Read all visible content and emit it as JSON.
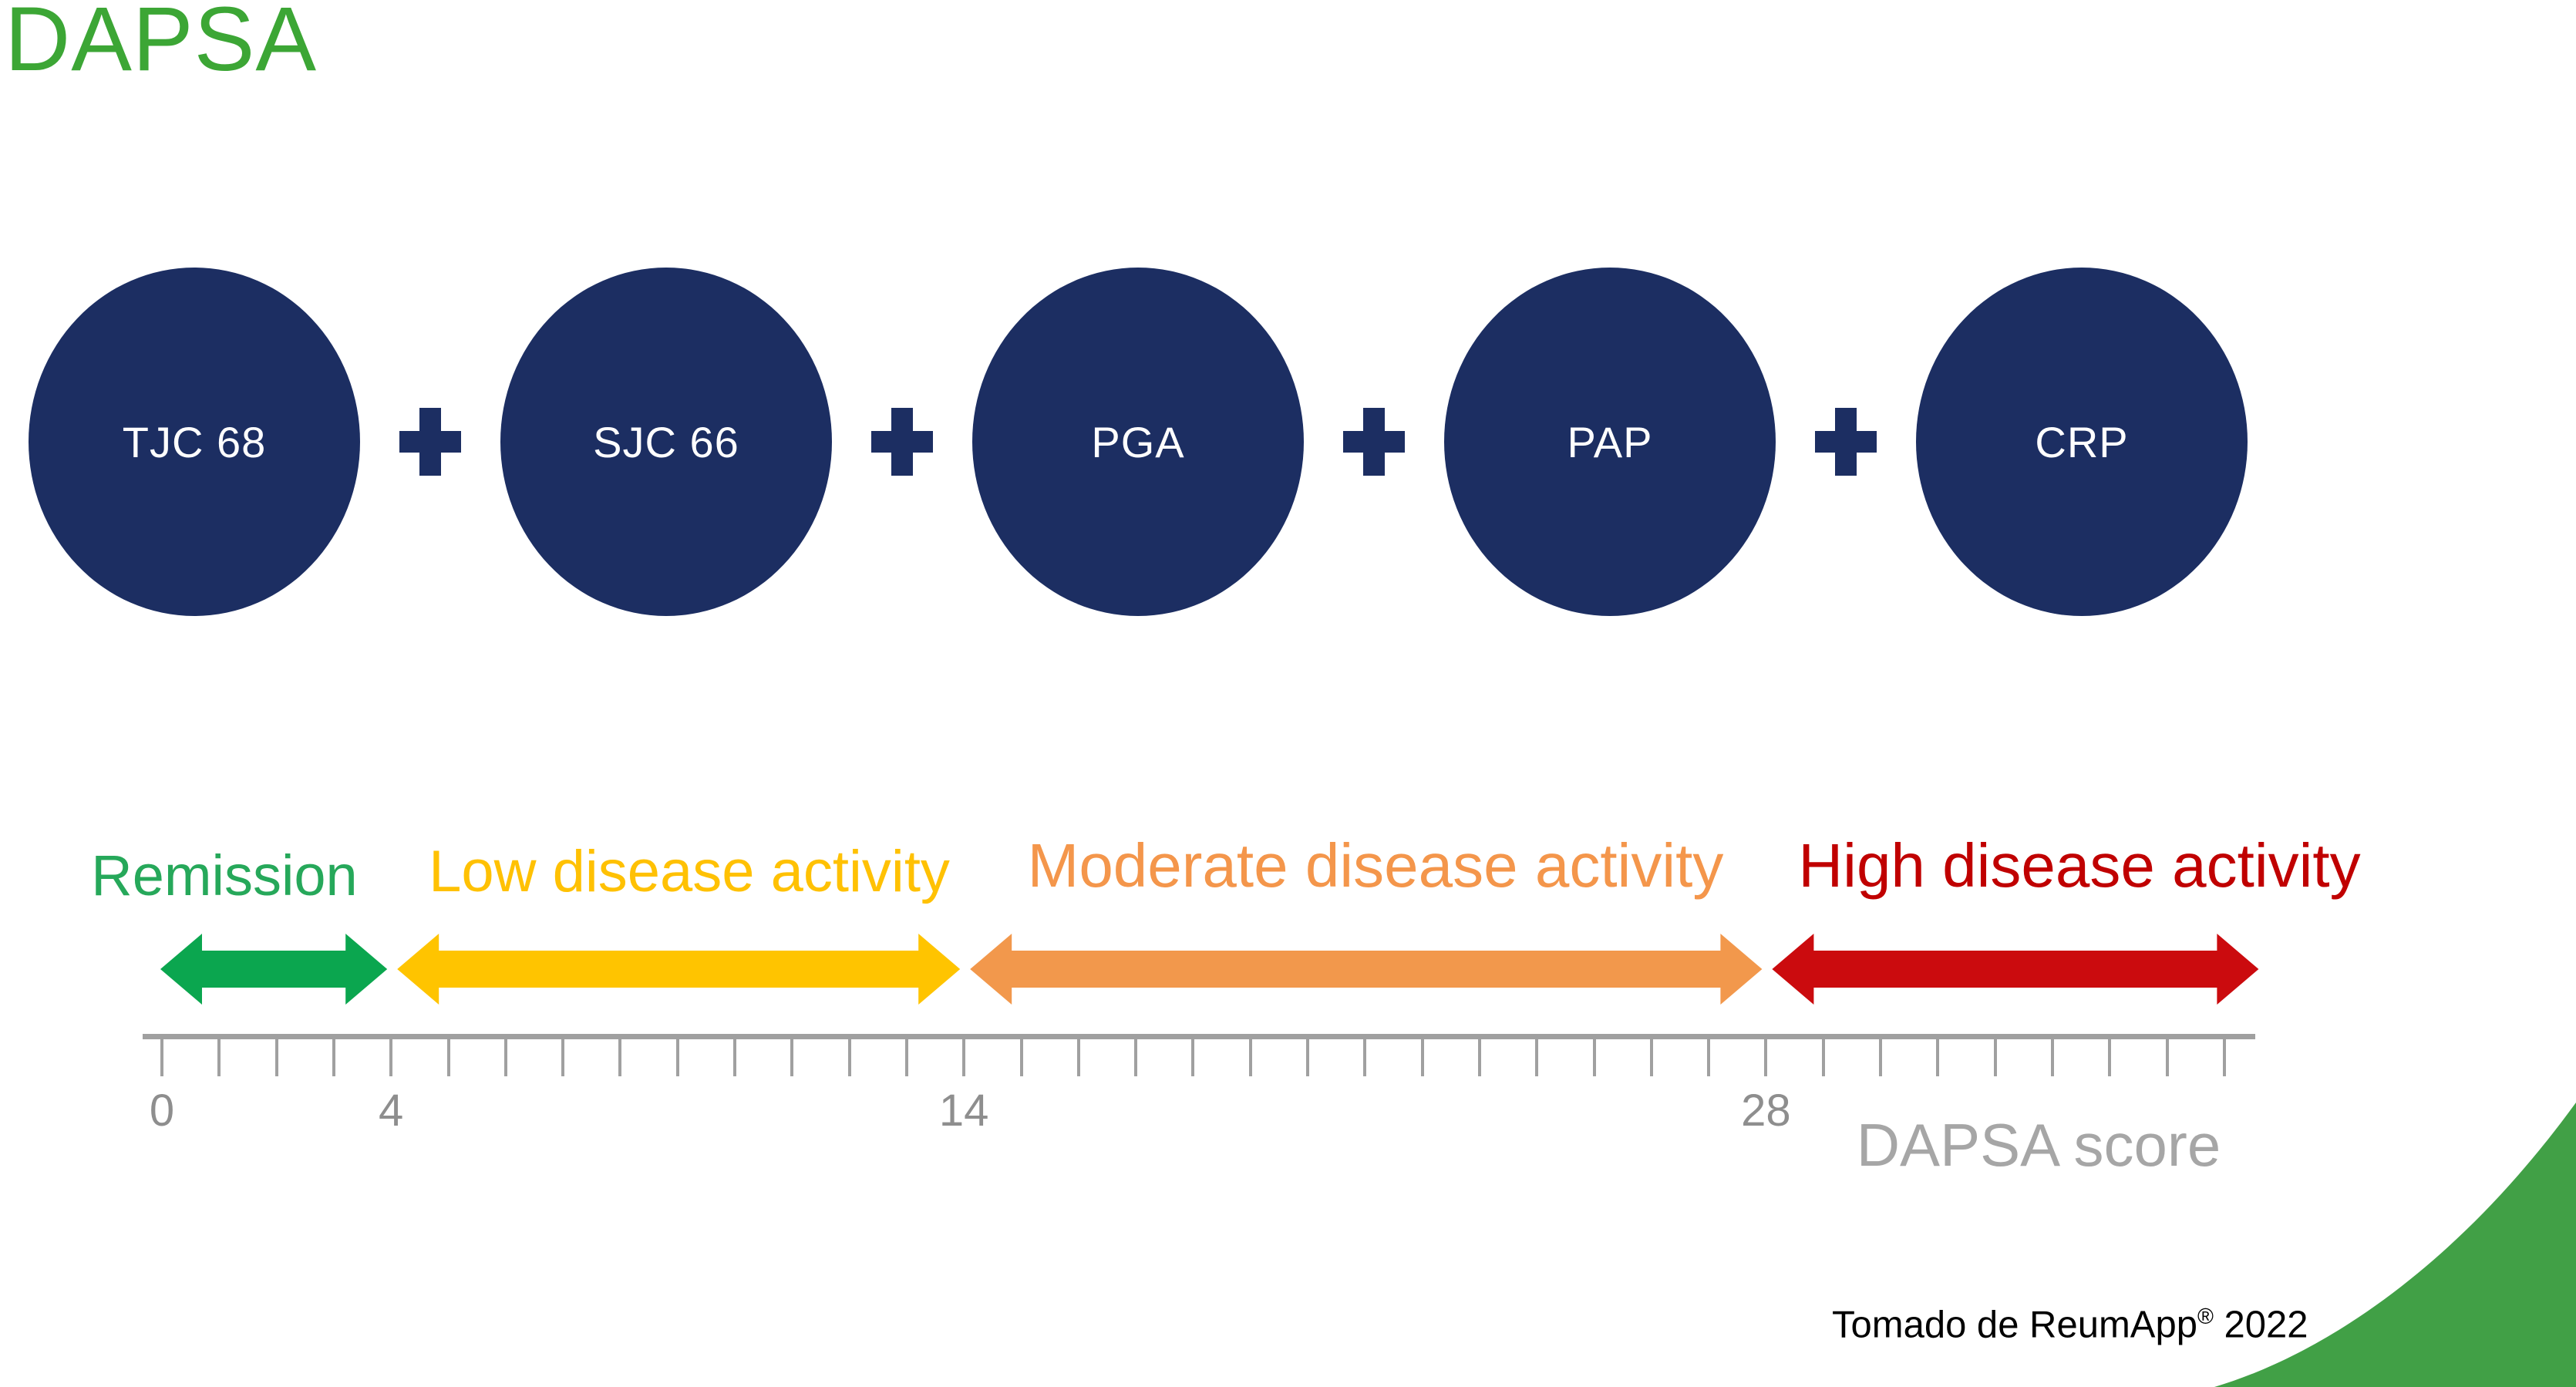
{
  "page": {
    "title": "DAPSA",
    "title_color": "#3CA635",
    "background": "#FFFFFF"
  },
  "formula": {
    "operator": "+",
    "circle_color": "#1C2E62",
    "text_color": "#FFFFFF",
    "components": [
      {
        "label": "TJC 68"
      },
      {
        "label": "SJC 66"
      },
      {
        "label": "PGA"
      },
      {
        "label": "PAP"
      },
      {
        "label": "CRP"
      }
    ]
  },
  "scale": {
    "zones": [
      {
        "label": "Remission",
        "arrow_color": "#0BA64F",
        "label_color": "#26A85A",
        "range": [
          0,
          4
        ]
      },
      {
        "label": "Low disease activity",
        "arrow_color": "#FFC400",
        "label_color": "#FFC103",
        "range": [
          4,
          14
        ]
      },
      {
        "label": "Moderate disease activity",
        "arrow_color": "#F2984C",
        "label_color": "#F4964B",
        "range": [
          14,
          28
        ]
      },
      {
        "label": "High disease activity",
        "arrow_color": "#CB0B0E",
        "label_color": "#C00000",
        "range": [
          28,
          36.6
        ]
      }
    ],
    "axis": {
      "min": 0,
      "max": 36,
      "step": 1,
      "labeled_ticks": [
        {
          "value": 0,
          "label": "0"
        },
        {
          "value": 4,
          "label": "4"
        },
        {
          "value": 14,
          "label": "14"
        },
        {
          "value": 28,
          "label": "28"
        }
      ],
      "title": "DAPSA score",
      "line_color": "#A0A0A0",
      "label_color": "#8E8E8E",
      "title_color": "#A6A6A6"
    }
  },
  "caption": {
    "text_before_sup": "Tomado de ReumApp",
    "sup": "®",
    "text_after_sup": " 2022"
  },
  "decor": {
    "corner_color": "#41A046"
  }
}
